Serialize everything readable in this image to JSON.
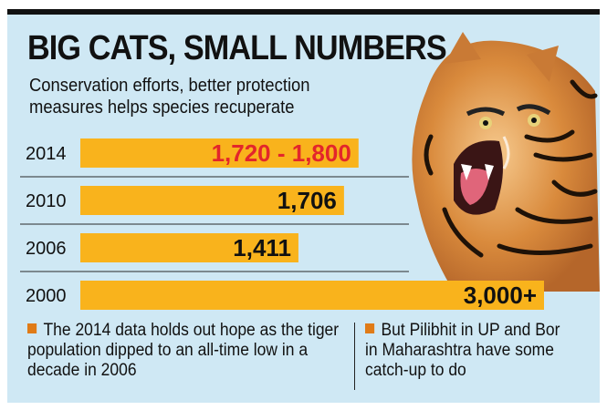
{
  "header": {
    "title": "BIG CATS, SMALL NUMBERS",
    "subtitle": "Conservation efforts, better protection measures helps species recuperate"
  },
  "colors": {
    "background": "#cfe8f4",
    "bar": "#f9b31c",
    "highlight_label": "#e3262b",
    "label": "#111111",
    "bullet": "#e07b17"
  },
  "chart_data": {
    "type": "bar",
    "orientation": "horizontal",
    "title": "BIG CATS, SMALL NUMBERS",
    "xlabel": "",
    "ylabel": "",
    "categories": [
      "2014",
      "2010",
      "2006",
      "2000"
    ],
    "values": [
      1800,
      1706,
      1411,
      3000
    ],
    "value_labels": [
      "1,720 - 1,800",
      "1,706",
      "1,411",
      "3,000+"
    ],
    "highlight_index": 0,
    "xlim": [
      0,
      3000
    ]
  },
  "notes": [
    "The 2014 data holds out hope as the tiger population dipped to an all-time low in a decade in 2006",
    "But Pilibhit in UP and Bor in Maharashtra have some catch-up to do"
  ]
}
